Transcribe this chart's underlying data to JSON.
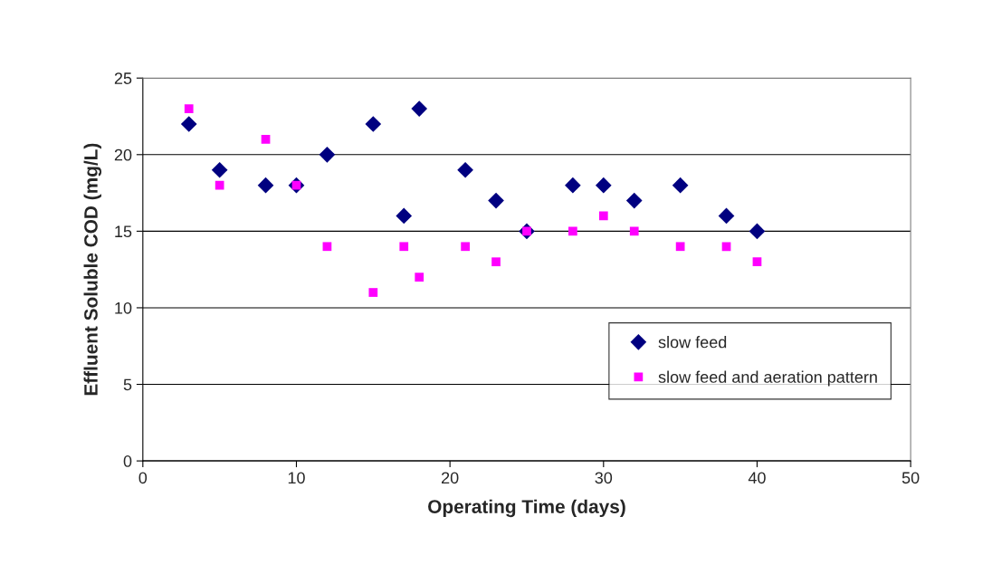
{
  "chart_data": {
    "type": "scatter",
    "xlabel": "Operating Time (days)",
    "ylabel": "Effluent Soluble COD (mg/L)",
    "xlim": [
      0,
      50
    ],
    "xticks": [
      0,
      10,
      20,
      30,
      40,
      50
    ],
    "ylim": [
      0,
      25
    ],
    "yticks": [
      0,
      5,
      10,
      15,
      20,
      25
    ],
    "grid": "y",
    "legend": "bottom right",
    "series": [
      {
        "name": "slow feed",
        "color": "#000080",
        "marker": "diamond",
        "x": [
          3,
          5,
          8,
          10,
          12,
          15,
          17,
          18,
          21,
          23,
          25,
          28,
          30,
          32,
          35,
          38,
          40
        ],
        "values": [
          22,
          19,
          18,
          18,
          20,
          22,
          16,
          23,
          19,
          17,
          15,
          18,
          18,
          17,
          18,
          16,
          15
        ]
      },
      {
        "name": "slow feed and aeration pattern",
        "color": "#ff00ff",
        "marker": "square",
        "x": [
          3,
          5,
          8,
          10,
          12,
          15,
          17,
          18,
          21,
          23,
          25,
          28,
          30,
          32,
          35,
          38,
          40
        ],
        "values": [
          23,
          18,
          21,
          18,
          14,
          11,
          14,
          12,
          14,
          13,
          15,
          15,
          16,
          15,
          14,
          14,
          13
        ]
      }
    ]
  }
}
